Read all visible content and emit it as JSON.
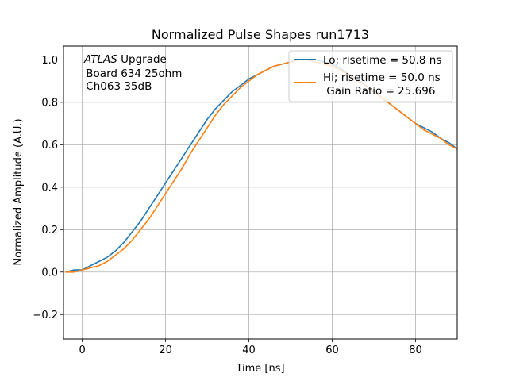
{
  "chart_data": {
    "type": "line",
    "title": "Normalized Pulse Shapes run1713",
    "xlabel": "Time [ns]",
    "ylabel": "Normalized Amplitude (A.U.)",
    "xlim": [
      -4.5,
      90
    ],
    "ylim": [
      -0.315,
      1.065
    ],
    "xticks": [
      0,
      20,
      40,
      60,
      80
    ],
    "yticks": [
      -0.2,
      0.0,
      0.2,
      0.4,
      0.6,
      0.8,
      1.0
    ],
    "xtick_labels": [
      "0",
      "20",
      "40",
      "60",
      "80"
    ],
    "ytick_labels": [
      "−0.2",
      "0.0",
      "0.2",
      "0.4",
      "0.6",
      "0.8",
      "1.0"
    ],
    "grid": true,
    "legend_position": "upper-right",
    "annotation": {
      "line1_italic": "ATLAS",
      "line1_rest": " Upgrade",
      "line2": " Board 634 25ohm",
      "line3": " Ch063 35dB"
    },
    "series": [
      {
        "name": "Lo; risetime = 50.8 ns",
        "color": "#1f77b4",
        "x": [
          -4,
          -2,
          0,
          2,
          4,
          6,
          8,
          10,
          12,
          14,
          16,
          18,
          20,
          22,
          24,
          26,
          28,
          30,
          32,
          34,
          36,
          38,
          40,
          42,
          44,
          46,
          48,
          50,
          52,
          54,
          56,
          58,
          60,
          62,
          64,
          66,
          68,
          70,
          72,
          74,
          76,
          78,
          80,
          82,
          84,
          86,
          88,
          90
        ],
        "y": [
          0.0,
          0.01,
          0.01,
          0.03,
          0.05,
          0.07,
          0.1,
          0.14,
          0.19,
          0.24,
          0.3,
          0.36,
          0.42,
          0.48,
          0.54,
          0.6,
          0.66,
          0.72,
          0.77,
          0.81,
          0.85,
          0.88,
          0.91,
          0.93,
          0.95,
          0.97,
          0.98,
          0.99,
          1.0,
          1.0,
          1.0,
          0.99,
          0.98,
          0.96,
          0.93,
          0.91,
          0.88,
          0.85,
          0.82,
          0.79,
          0.76,
          0.73,
          0.7,
          0.68,
          0.66,
          0.63,
          0.61,
          0.58
        ]
      },
      {
        "name": "Hi; risetime = 50.0 ns",
        "legend_extra": " Gain Ratio = 25.696",
        "color": "#ff7f0e",
        "x": [
          -4,
          -2,
          0,
          2,
          4,
          6,
          8,
          10,
          12,
          14,
          16,
          18,
          20,
          22,
          24,
          26,
          28,
          30,
          32,
          34,
          36,
          38,
          40,
          42,
          44,
          46,
          48,
          50,
          52,
          54,
          56,
          58,
          60,
          62,
          64,
          66,
          68,
          70,
          72,
          74,
          76,
          78,
          80,
          82,
          84,
          86,
          88,
          90
        ],
        "y": [
          0.0,
          0.0,
          0.01,
          0.02,
          0.03,
          0.05,
          0.08,
          0.11,
          0.15,
          0.2,
          0.25,
          0.31,
          0.37,
          0.43,
          0.49,
          0.56,
          0.62,
          0.68,
          0.74,
          0.79,
          0.83,
          0.87,
          0.9,
          0.93,
          0.95,
          0.97,
          0.98,
          0.99,
          1.0,
          1.0,
          0.99,
          0.98,
          0.97,
          0.95,
          0.93,
          0.9,
          0.88,
          0.85,
          0.82,
          0.79,
          0.76,
          0.73,
          0.7,
          0.67,
          0.65,
          0.63,
          0.6,
          0.58
        ]
      }
    ]
  }
}
